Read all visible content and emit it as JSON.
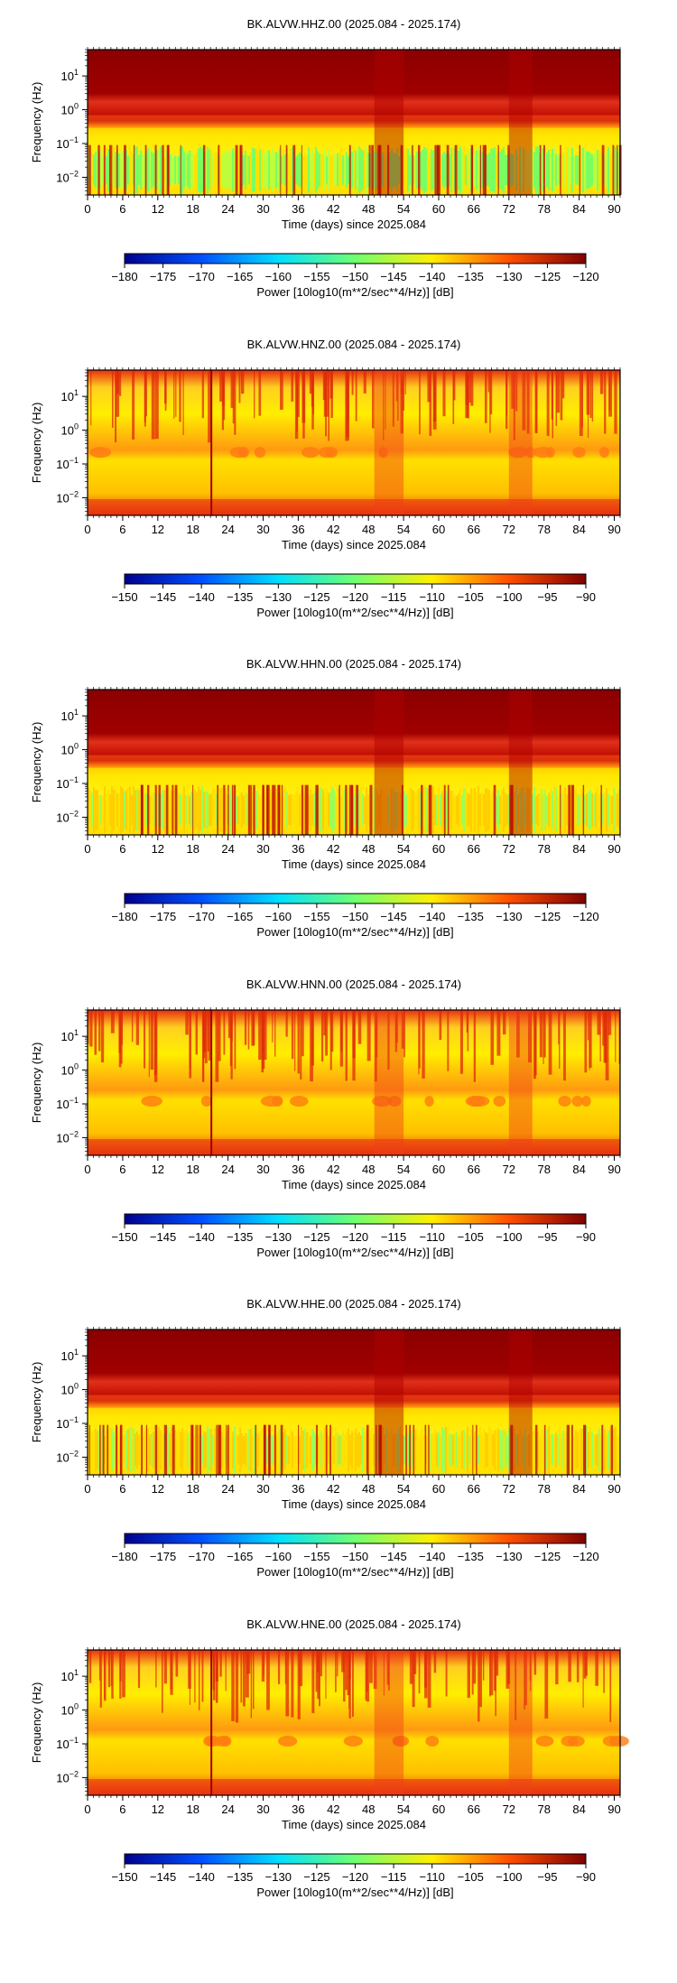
{
  "chart_data": [
    {
      "type": "heatmap",
      "title": "BK.ALVW.HHZ.00 (2025.084 - 2025.174)",
      "xlabel": "Time (days) since 2025.084",
      "ylabel": "Frequency (Hz)",
      "xlim": [
        0,
        91
      ],
      "x_ticks": [
        "0",
        "6",
        "12",
        "18",
        "24",
        "30",
        "36",
        "42",
        "48",
        "54",
        "60",
        "66",
        "72",
        "78",
        "84",
        "90"
      ],
      "ylim_hz": [
        0.003,
        60
      ],
      "y_scale": "log",
      "y_ticks": [
        "10^1",
        "10^0",
        "10^-1",
        "10^-2"
      ],
      "colorbar": {
        "label": "Power [10log10(m**2/sec**4/Hz)] [dB]",
        "range": [
          -180,
          -120
        ],
        "ticks": [
          "−180",
          "−175",
          "−170",
          "−165",
          "−160",
          "−155",
          "−150",
          "−145",
          "−140",
          "−135",
          "−130",
          "−125",
          "−120"
        ]
      }
    },
    {
      "type": "heatmap",
      "title": "BK.ALVW.HNZ.00 (2025.084 - 2025.174)",
      "xlabel": "Time (days) since 2025.084",
      "ylabel": "Frequency (Hz)",
      "xlim": [
        0,
        91
      ],
      "x_ticks": [
        "0",
        "6",
        "12",
        "18",
        "24",
        "30",
        "36",
        "42",
        "48",
        "54",
        "60",
        "66",
        "72",
        "78",
        "84",
        "90"
      ],
      "ylim_hz": [
        0.003,
        60
      ],
      "y_scale": "log",
      "y_ticks": [
        "10^1",
        "10^0",
        "10^-1",
        "10^-2"
      ],
      "colorbar": {
        "label": "Power [10log10(m**2/sec**4/Hz)] [dB]",
        "range": [
          -150,
          -90
        ],
        "ticks": [
          "−150",
          "−145",
          "−140",
          "−135",
          "−130",
          "−125",
          "−120",
          "−115",
          "−110",
          "−105",
          "−100",
          "−95",
          "−90"
        ]
      }
    },
    {
      "type": "heatmap",
      "title": "BK.ALVW.HHN.00 (2025.084 - 2025.174)",
      "xlabel": "Time (days) since 2025.084",
      "ylabel": "Frequency (Hz)",
      "xlim": [
        0,
        91
      ],
      "x_ticks": [
        "0",
        "6",
        "12",
        "18",
        "24",
        "30",
        "36",
        "42",
        "48",
        "54",
        "60",
        "66",
        "72",
        "78",
        "84",
        "90"
      ],
      "ylim_hz": [
        0.003,
        60
      ],
      "y_scale": "log",
      "y_ticks": [
        "10^1",
        "10^0",
        "10^-1",
        "10^-2"
      ],
      "colorbar": {
        "label": "Power [10log10(m**2/sec**4/Hz)] [dB]",
        "range": [
          -180,
          -120
        ],
        "ticks": [
          "−180",
          "−175",
          "−170",
          "−165",
          "−160",
          "−155",
          "−150",
          "−145",
          "−140",
          "−135",
          "−130",
          "−125",
          "−120"
        ]
      }
    },
    {
      "type": "heatmap",
      "title": "BK.ALVW.HNN.00 (2025.084 - 2025.174)",
      "xlabel": "Time (days) since 2025.084",
      "ylabel": "Frequency (Hz)",
      "xlim": [
        0,
        91
      ],
      "x_ticks": [
        "0",
        "6",
        "12",
        "18",
        "24",
        "30",
        "36",
        "42",
        "48",
        "54",
        "60",
        "66",
        "72",
        "78",
        "84",
        "90"
      ],
      "ylim_hz": [
        0.003,
        60
      ],
      "y_scale": "log",
      "y_ticks": [
        "10^1",
        "10^0",
        "10^-1",
        "10^-2"
      ],
      "colorbar": {
        "label": "Power [10log10(m**2/sec**4/Hz)] [dB]",
        "range": [
          -150,
          -90
        ],
        "ticks": [
          "−150",
          "−145",
          "−140",
          "−135",
          "−130",
          "−125",
          "−120",
          "−115",
          "−110",
          "−105",
          "−100",
          "−95",
          "−90"
        ]
      }
    },
    {
      "type": "heatmap",
      "title": "BK.ALVW.HHE.00 (2025.084 - 2025.174)",
      "xlabel": "Time (days) since 2025.084",
      "ylabel": "Frequency (Hz)",
      "xlim": [
        0,
        91
      ],
      "x_ticks": [
        "0",
        "6",
        "12",
        "18",
        "24",
        "30",
        "36",
        "42",
        "48",
        "54",
        "60",
        "66",
        "72",
        "78",
        "84",
        "90"
      ],
      "ylim_hz": [
        0.003,
        60
      ],
      "y_scale": "log",
      "y_ticks": [
        "10^1",
        "10^0",
        "10^-1",
        "10^-2"
      ],
      "colorbar": {
        "label": "Power [10log10(m**2/sec**4/Hz)] [dB]",
        "range": [
          -180,
          -120
        ],
        "ticks": [
          "−180",
          "−175",
          "−170",
          "−165",
          "−160",
          "−155",
          "−150",
          "−145",
          "−140",
          "−135",
          "−130",
          "−125",
          "−120"
        ]
      }
    },
    {
      "type": "heatmap",
      "title": "BK.ALVW.HNE.00 (2025.084 - 2025.174)",
      "xlabel": "Time (days) since 2025.084",
      "ylabel": "Frequency (Hz)",
      "xlim": [
        0,
        91
      ],
      "x_ticks": [
        "0",
        "6",
        "12",
        "18",
        "24",
        "30",
        "36",
        "42",
        "48",
        "54",
        "60",
        "66",
        "72",
        "78",
        "84",
        "90"
      ],
      "ylim_hz": [
        0.003,
        60
      ],
      "y_scale": "log",
      "y_ticks": [
        "10^1",
        "10^0",
        "10^-1",
        "10^-2"
      ],
      "colorbar": {
        "label": "Power [10log10(m**2/sec**4/Hz)] [dB]",
        "range": [
          -150,
          -90
        ],
        "ticks": [
          "−150",
          "−145",
          "−140",
          "−135",
          "−130",
          "−125",
          "−120",
          "−115",
          "−110",
          "−105",
          "−100",
          "−95",
          "−90"
        ]
      }
    }
  ],
  "colormap": [
    "#00008f",
    "#0050ff",
    "#00dfff",
    "#70ff70",
    "#ffef00",
    "#ff4f00",
    "#800000"
  ]
}
